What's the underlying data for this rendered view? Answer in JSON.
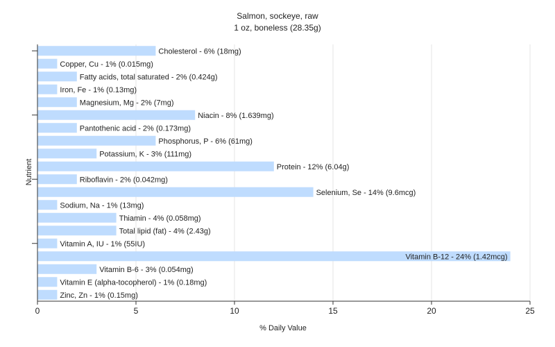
{
  "chart_data": {
    "type": "bar",
    "orientation": "horizontal",
    "title": "Salmon, sockeye, raw",
    "subtitle": "1 oz, boneless (28.35g)",
    "xlabel": "% Daily Value",
    "ylabel": "Nutrient",
    "xlim": [
      0,
      25
    ],
    "xticks": [
      0,
      5,
      10,
      15,
      20,
      25
    ],
    "grid": "vertical",
    "colors": {
      "bar": "#bfdcfe",
      "grid": "#e4e4e4",
      "axis": "#333333",
      "text": "#222222"
    },
    "categories": [
      "Cholesterol",
      "Copper, Cu",
      "Fatty acids, total saturated",
      "Iron, Fe",
      "Magnesium, Mg",
      "Niacin",
      "Pantothenic acid",
      "Phosphorus, P",
      "Potassium, K",
      "Protein",
      "Riboflavin",
      "Selenium, Se",
      "Sodium, Na",
      "Thiamin",
      "Total lipid (fat)",
      "Vitamin A, IU",
      "Vitamin B-12",
      "Vitamin B-6",
      "Vitamin E (alpha-tocopherol)",
      "Zinc, Zn"
    ],
    "values": [
      6,
      1,
      2,
      1,
      2,
      8,
      2,
      6,
      3,
      12,
      2,
      14,
      1,
      4,
      4,
      1,
      24,
      3,
      1,
      1
    ],
    "labels": [
      "Cholesterol - 6% (18mg)",
      "Copper, Cu - 1% (0.015mg)",
      "Fatty acids, total saturated - 2% (0.424g)",
      "Iron, Fe - 1% (0.13mg)",
      "Magnesium, Mg - 2% (7mg)",
      "Niacin - 8% (1.639mg)",
      "Pantothenic acid - 2% (0.173mg)",
      "Phosphorus, P - 6% (61mg)",
      "Potassium, K - 3% (111mg)",
      "Protein - 12% (6.04g)",
      "Riboflavin - 2% (0.042mg)",
      "Selenium, Se - 14% (9.6mcg)",
      "Sodium, Na - 1% (13mg)",
      "Thiamin - 4% (0.058mg)",
      "Total lipid (fat) - 4% (2.43g)",
      "Vitamin A, IU - 1% (55IU)",
      "Vitamin B-12 - 24% (1.42mcg)",
      "Vitamin B-6 - 3% (0.054mg)",
      "Vitamin E (alpha-tocopherol) - 1% (0.18mg)",
      "Zinc, Zn - 1% (0.15mg)"
    ]
  }
}
